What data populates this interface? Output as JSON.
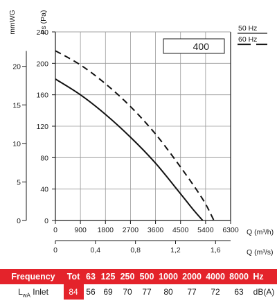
{
  "chart_data": {
    "type": "line",
    "model_label": "400",
    "left_axis_unit": "mmWG",
    "ylabel": "Ps (Pa)",
    "x_axis_top_label": "Q (m³/h)",
    "x_axis_bottom_label": "Q (m³/s)",
    "x_ticks_m3h": [
      "0",
      "900",
      "1800",
      "2700",
      "3600",
      "4500",
      "5400",
      "6300"
    ],
    "x_ticks_m3s": [
      "0",
      "0,4",
      "0,8",
      "1,2",
      "1,6"
    ],
    "y_ticks_pa": [
      "0",
      "40",
      "80",
      "120",
      "160",
      "200",
      "240"
    ],
    "y_ticks_mmwg": [
      "0",
      "5",
      "10",
      "15",
      "20"
    ],
    "xlim": [
      0,
      6300
    ],
    "ylim": [
      0,
      240
    ],
    "grid": true,
    "legend_position": "top-right",
    "series": [
      {
        "name": "50 Hz",
        "style": "solid",
        "x": [
          0,
          900,
          1800,
          2700,
          3600,
          4500,
          5000,
          5300
        ],
        "y": [
          180,
          160,
          135,
          106,
          73,
          34,
          12,
          0
        ]
      },
      {
        "name": "60 Hz",
        "style": "dashed",
        "x": [
          0,
          900,
          1800,
          2700,
          3600,
          4500,
          5300,
          5700
        ],
        "y": [
          216,
          198,
          174,
          145,
          110,
          68,
          27,
          0
        ]
      }
    ]
  },
  "sound_table": {
    "header": {
      "title": "Frequency",
      "tot": "Tot",
      "bands": [
        "63",
        "125",
        "250",
        "500",
        "1000",
        "2000",
        "4000",
        "8000"
      ],
      "unit": "Hz"
    },
    "row": {
      "label_main": "L",
      "label_sub": "wA",
      "label_suffix": "Inlet",
      "tot": "84",
      "values": [
        "56",
        "69",
        "70",
        "77",
        "80",
        "77",
        "72",
        "63"
      ],
      "unit": "dB(A)"
    }
  },
  "colors": {
    "accent": "#e4232b",
    "curve": "#111111",
    "grid": "#9a9a9a"
  }
}
